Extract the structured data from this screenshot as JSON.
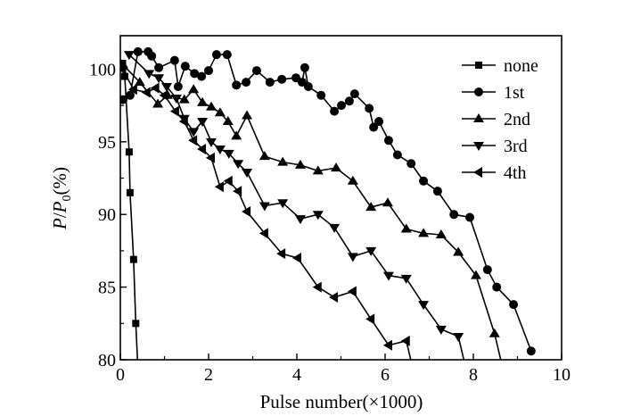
{
  "chart_data": {
    "type": "line",
    "xlabel": "Pulse number(×1000)",
    "ylabel_main": "P",
    "ylabel_sep": "/",
    "ylabel_sub_base": "P",
    "ylabel_sub": "0",
    "ylabel_unit": "(%)",
    "xlim": [
      0,
      10
    ],
    "ylim": [
      80,
      102.3
    ],
    "xticks": [
      0,
      2,
      4,
      6,
      8,
      10
    ],
    "yticks": [
      80,
      85,
      90,
      95,
      100
    ],
    "xtick_labels": [
      "0",
      "2",
      "4",
      "6",
      "8",
      "10"
    ],
    "ytick_labels": [
      "80",
      "85",
      "90",
      "95",
      "100"
    ],
    "legend_position": "top-right",
    "grid": false,
    "series": [
      {
        "name": "none",
        "marker": "square",
        "x": [
          0.05,
          0.1,
          0.2,
          0.22,
          0.3,
          0.35,
          0.42
        ],
        "y": [
          100.4,
          99.5,
          94.3,
          91.5,
          86.9,
          82.5,
          78.0
        ]
      },
      {
        "name": "1st",
        "marker": "circle",
        "x": [
          0.06,
          0.22,
          0.4,
          0.63,
          0.71,
          0.87,
          1.23,
          1.31,
          1.47,
          1.68,
          1.84,
          2.0,
          2.18,
          2.42,
          2.63,
          2.85,
          3.09,
          3.39,
          3.66,
          3.98,
          4.12,
          4.18,
          4.26,
          4.55,
          4.85,
          5.01,
          5.19,
          5.31,
          5.64,
          5.74,
          5.86,
          6.08,
          6.28,
          6.59,
          6.87,
          7.19,
          7.56,
          7.92,
          8.32,
          8.53,
          8.91,
          9.31
        ],
        "y": [
          97.9,
          98.2,
          101.2,
          101.2,
          100.9,
          100.1,
          100.6,
          98.8,
          100.2,
          99.7,
          99.5,
          99.9,
          101.0,
          101.0,
          98.9,
          99.1,
          99.9,
          99.1,
          99.3,
          99.4,
          99.1,
          100.1,
          98.8,
          98.2,
          97.1,
          97.5,
          97.8,
          98.3,
          97.3,
          96.0,
          96.4,
          95.1,
          94.1,
          93.5,
          92.3,
          91.6,
          90.0,
          89.8,
          86.2,
          85.0,
          83.8,
          80.6
        ]
      },
      {
        "name": "2nd",
        "marker": "triangle-up",
        "x": [
          0.06,
          0.44,
          0.85,
          1.07,
          1.45,
          1.66,
          1.86,
          2.06,
          2.26,
          2.44,
          2.63,
          2.87,
          3.27,
          3.68,
          4.08,
          4.48,
          4.89,
          5.27,
          5.68,
          6.06,
          6.48,
          6.87,
          7.27,
          7.66,
          8.06,
          8.48,
          8.7
        ],
        "y": [
          100.3,
          99.1,
          97.6,
          98.2,
          97.9,
          98.6,
          97.7,
          97.4,
          97.0,
          96.4,
          95.4,
          96.8,
          94.0,
          93.6,
          93.4,
          93.0,
          93.2,
          92.3,
          90.5,
          90.8,
          89.0,
          88.7,
          88.6,
          87.4,
          85.8,
          81.8,
          79.0
        ]
      },
      {
        "name": "3rd",
        "marker": "triangle-down",
        "x": [
          0.2,
          0.65,
          0.87,
          1.05,
          1.27,
          1.45,
          1.66,
          1.86,
          2.06,
          2.26,
          2.46,
          2.67,
          2.87,
          3.27,
          3.68,
          4.08,
          4.48,
          4.85,
          5.27,
          5.68,
          6.08,
          6.48,
          6.87,
          7.27,
          7.66,
          7.9
        ],
        "y": [
          101.0,
          99.7,
          99.4,
          98.8,
          98.0,
          96.6,
          95.7,
          96.4,
          95.0,
          94.5,
          94.2,
          93.5,
          92.9,
          90.6,
          90.8,
          89.7,
          90.0,
          89.1,
          87.1,
          87.5,
          85.8,
          85.6,
          83.8,
          82.1,
          81.6,
          78.5
        ]
      },
      {
        "name": "4th",
        "marker": "triangle-left",
        "x": [
          0.05,
          0.3,
          0.6,
          0.8,
          1.0,
          1.25,
          1.45,
          1.66,
          1.86,
          2.06,
          2.26,
          2.46,
          2.67,
          2.87,
          3.27,
          3.66,
          4.02,
          4.48,
          4.85,
          5.27,
          5.68,
          6.08,
          6.48,
          6.7
        ],
        "y": [
          100.0,
          98.6,
          98.4,
          98.7,
          98.2,
          97.1,
          96.4,
          95.1,
          94.5,
          93.9,
          91.9,
          92.3,
          91.6,
          90.2,
          88.7,
          87.3,
          87.0,
          85.0,
          84.3,
          84.7,
          82.8,
          81.0,
          81.3,
          78.5
        ]
      }
    ]
  }
}
